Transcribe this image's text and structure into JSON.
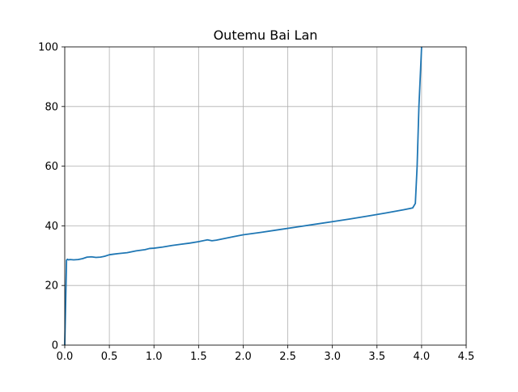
{
  "chart_data": {
    "type": "line",
    "title": "Outemu Bai Lan",
    "xlabel": "",
    "ylabel": "",
    "xlim": [
      0.0,
      4.5
    ],
    "ylim": [
      0,
      100
    ],
    "grid": true,
    "x_ticks": [
      "0.0",
      "0.5",
      "1.0",
      "1.5",
      "2.0",
      "2.5",
      "3.0",
      "3.5",
      "4.0",
      "4.5"
    ],
    "y_ticks": [
      "0",
      "20",
      "40",
      "60",
      "80",
      "100"
    ],
    "colors": {
      "line": "#1f77b4",
      "grid": "#b0b0b0",
      "axes": "#000000"
    },
    "series": [
      {
        "x": [
          0.0,
          0.01,
          0.02,
          0.03,
          0.04,
          0.06,
          0.1,
          0.15,
          0.2,
          0.25,
          0.3,
          0.35,
          0.4,
          0.45,
          0.5,
          0.55,
          0.6,
          0.7,
          0.8,
          0.9,
          0.95,
          1.0,
          1.1,
          1.2,
          1.3,
          1.4,
          1.5,
          1.6,
          1.65,
          1.7,
          1.8,
          1.9,
          2.0,
          2.2,
          2.4,
          2.6,
          2.8,
          3.0,
          3.2,
          3.4,
          3.6,
          3.8,
          3.9,
          3.93,
          3.95,
          3.97,
          4.0
        ],
        "y": [
          0,
          14,
          28.5,
          28.8,
          28.6,
          28.7,
          28.6,
          28.7,
          29.0,
          29.5,
          29.6,
          29.4,
          29.5,
          29.8,
          30.3,
          30.5,
          30.7,
          31.0,
          31.6,
          32.0,
          32.4,
          32.5,
          32.9,
          33.4,
          33.8,
          34.2,
          34.7,
          35.3,
          35.0,
          35.2,
          35.8,
          36.4,
          37.0,
          37.8,
          38.7,
          39.6,
          40.5,
          41.4,
          42.3,
          43.3,
          44.3,
          45.4,
          46.0,
          47.5,
          60.0,
          80.0,
          100.0
        ]
      }
    ]
  }
}
